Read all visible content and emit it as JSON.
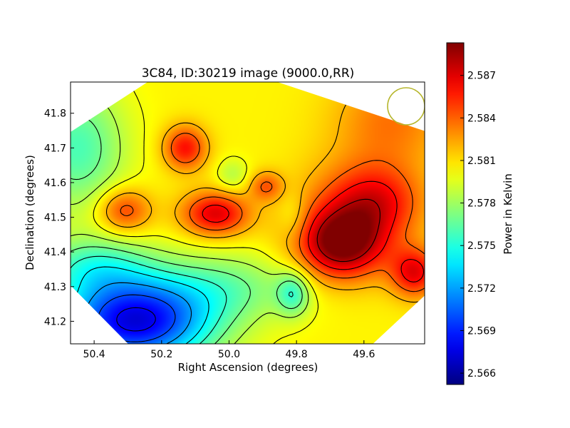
{
  "chart_data": {
    "type": "heatmap",
    "title": "3C84, ID:30219 image (9000.0,RR)",
    "xlabel": "Right Ascension (degrees)",
    "ylabel": "Declination (degrees)",
    "colorbar_label": "Power in Kelvin",
    "xlim": [
      50.47,
      49.42
    ],
    "ylim": [
      41.135,
      41.89
    ],
    "x_ticks": [
      {
        "value": 50.4,
        "label": "50.4"
      },
      {
        "value": 50.2,
        "label": "50.2"
      },
      {
        "value": 50.0,
        "label": "50.0"
      },
      {
        "value": 49.8,
        "label": "49.8"
      },
      {
        "value": 49.6,
        "label": "49.6"
      }
    ],
    "y_ticks": [
      {
        "value": 41.2,
        "label": "41.2"
      },
      {
        "value": 41.3,
        "label": "41.3"
      },
      {
        "value": 41.4,
        "label": "41.4"
      },
      {
        "value": 41.5,
        "label": "41.5"
      },
      {
        "value": 41.6,
        "label": "41.6"
      },
      {
        "value": 41.7,
        "label": "41.7"
      },
      {
        "value": 41.8,
        "label": "41.8"
      }
    ],
    "colorbar": {
      "min": 2.5652,
      "max": 2.5893,
      "ticks": [
        {
          "value": 2.566,
          "label": "2.566"
        },
        {
          "value": 2.569,
          "label": "2.569"
        },
        {
          "value": 2.572,
          "label": "2.572"
        },
        {
          "value": 2.575,
          "label": "2.575"
        },
        {
          "value": 2.578,
          "label": "2.578"
        },
        {
          "value": 2.581,
          "label": "2.581"
        },
        {
          "value": 2.584,
          "label": "2.584"
        },
        {
          "value": 2.587,
          "label": "2.587"
        }
      ],
      "colormap": "jet"
    },
    "baseline": 2.5805,
    "features": [
      {
        "ra": 49.67,
        "dec": 41.42,
        "amplitude": 0.008,
        "sigma_ra": 0.09,
        "sigma_dec": 0.07
      },
      {
        "ra": 49.62,
        "dec": 41.52,
        "amplitude": 0.004,
        "sigma_ra": 0.12,
        "sigma_dec": 0.1
      },
      {
        "ra": 49.55,
        "dec": 41.55,
        "amplitude": 0.003,
        "sigma_ra": 0.09,
        "sigma_dec": 0.07
      },
      {
        "ra": 49.45,
        "dec": 41.34,
        "amplitude": 0.006,
        "sigma_ra": 0.05,
        "sigma_dec": 0.05
      },
      {
        "ra": 50.04,
        "dec": 41.51,
        "amplitude": 0.0065,
        "sigma_ra": 0.07,
        "sigma_dec": 0.045
      },
      {
        "ra": 50.13,
        "dec": 41.7,
        "amplitude": 0.0055,
        "sigma_ra": 0.045,
        "sigma_dec": 0.045
      },
      {
        "ra": 50.31,
        "dec": 41.52,
        "amplitude": 0.0045,
        "sigma_ra": 0.055,
        "sigma_dec": 0.045
      },
      {
        "ra": 49.89,
        "dec": 41.59,
        "amplitude": 0.0035,
        "sigma_ra": 0.035,
        "sigma_dec": 0.03
      },
      {
        "ra": 49.52,
        "dec": 41.78,
        "amplitude": 0.003,
        "sigma_ra": 0.12,
        "sigma_dec": 0.1
      },
      {
        "ra": 50.28,
        "dec": 41.2,
        "amplitude": -0.013,
        "sigma_ra": 0.16,
        "sigma_dec": 0.09
      },
      {
        "ra": 50.4,
        "dec": 41.36,
        "amplitude": -0.004,
        "sigma_ra": 0.12,
        "sigma_dec": 0.06
      },
      {
        "ra": 50.0,
        "dec": 41.3,
        "amplitude": -0.003,
        "sigma_ra": 0.15,
        "sigma_dec": 0.07
      },
      {
        "ra": 49.81,
        "dec": 41.28,
        "amplitude": -0.004,
        "sigma_ra": 0.035,
        "sigma_dec": 0.045
      },
      {
        "ra": 49.99,
        "dec": 41.62,
        "amplitude": -0.002,
        "sigma_ra": 0.035,
        "sigma_dec": 0.035
      },
      {
        "ra": 50.45,
        "dec": 41.7,
        "amplitude": -0.0045,
        "sigma_ra": 0.1,
        "sigma_dec": 0.13
      },
      {
        "ra": 49.81,
        "dec": 41.5,
        "amplitude": -0.0015,
        "sigma_ra": 0.03,
        "sigma_dec": 0.05
      }
    ],
    "contour_levels": [
      2.568,
      2.57,
      2.572,
      2.574,
      2.5755,
      2.577,
      2.5785,
      2.58,
      2.582,
      2.584,
      2.586,
      2.588
    ],
    "beam_circle": {
      "ra": 49.475,
      "dec": 41.82,
      "radius_deg": 0.055,
      "color": "#b5b52a"
    },
    "colors": {
      "contour": "#000000",
      "beam": "#b5b52a"
    }
  }
}
